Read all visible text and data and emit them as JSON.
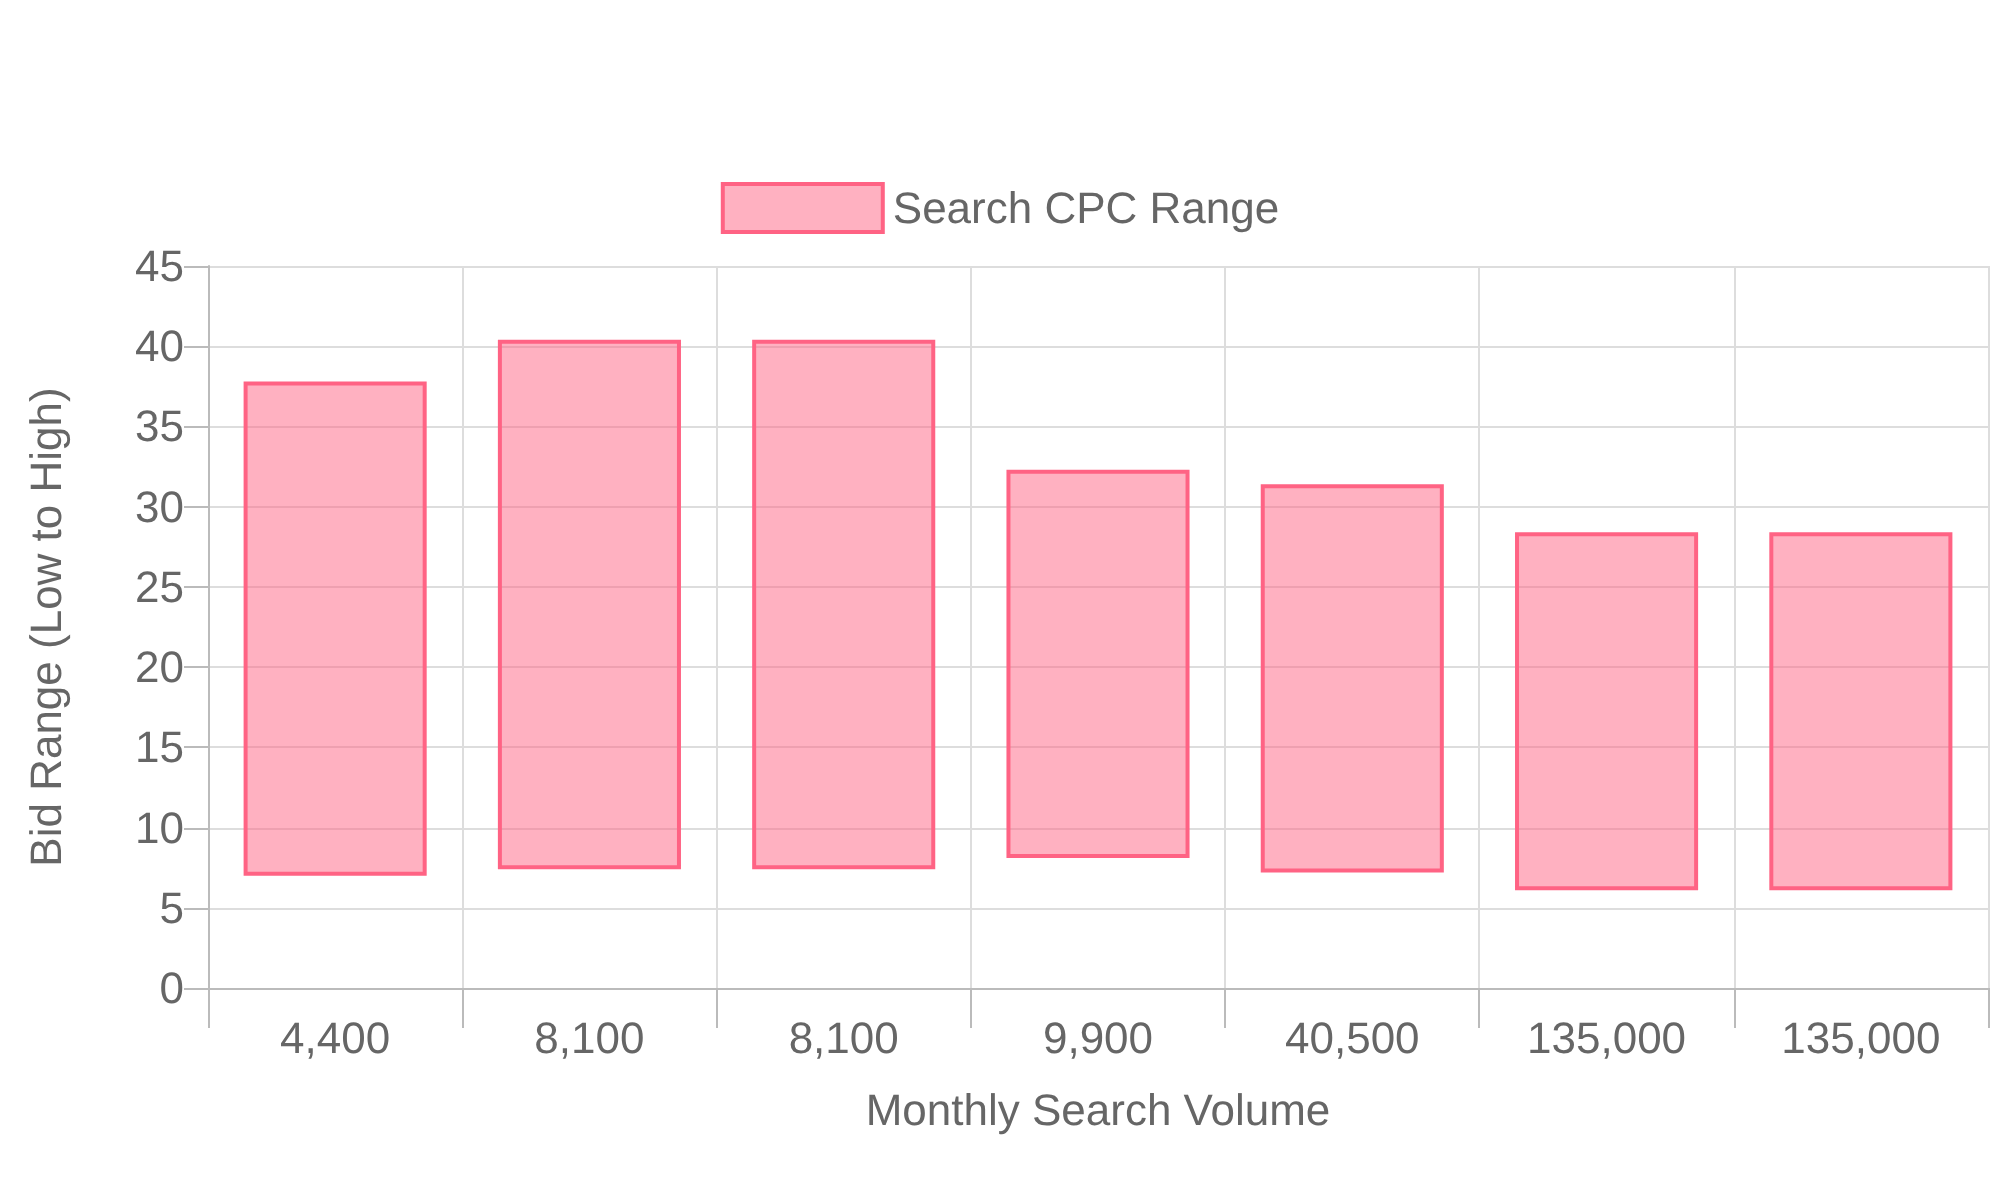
{
  "chart_data": {
    "type": "bar",
    "xlabel": "Monthly Search Volume",
    "ylabel": "Bid Range (Low to High)",
    "categories": [
      "4,400",
      "8,100",
      "8,100",
      "9,900",
      "40,500",
      "135,000",
      "135,000"
    ],
    "series": [
      {
        "name": "Search CPC Range",
        "color": "#ff6384",
        "values": [
          30.8,
          33.0,
          33.0,
          24.2,
          24.2,
          22.3,
          22.3
        ],
        "base": [
          7.0,
          7.4,
          7.4,
          8.1,
          7.2,
          6.1,
          6.1
        ]
      }
    ],
    "ylim": [
      0,
      45
    ],
    "yticks": [
      0,
      5,
      10,
      15,
      20,
      25,
      30,
      35,
      40,
      45
    ],
    "grid": true,
    "legend": "top"
  }
}
